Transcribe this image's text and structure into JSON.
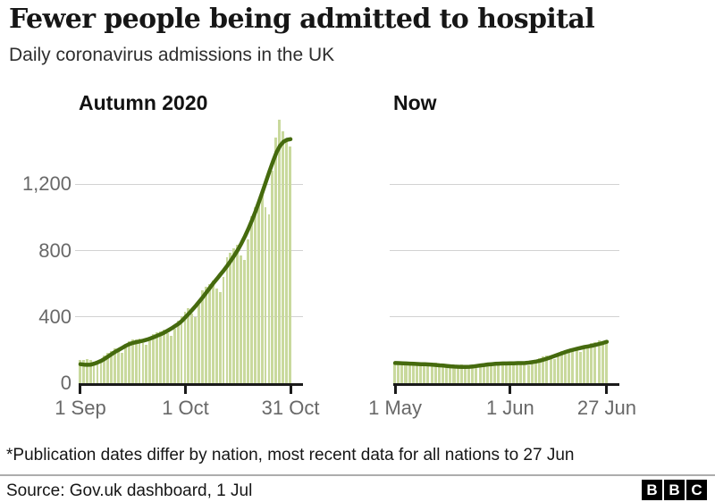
{
  "header": {
    "title": "Fewer people being admitted to hospital",
    "subtitle": "Daily coronavirus admissions in the UK"
  },
  "footnote": "*Publication dates differ by nation, most recent data for all nations to 27 Jun",
  "source": "Source: Gov.uk dashboard, 1 Jul",
  "brand": {
    "letters": [
      "B",
      "B",
      "C"
    ]
  },
  "colors": {
    "bar": "#c9d99d",
    "line": "#456a0e",
    "grid": "#d2d2d2",
    "axis": "#1a1a1a",
    "tick_label": "#686868",
    "text": "#161616",
    "separator": "#adadad"
  },
  "chart_data": [
    {
      "type": "bar",
      "panel_label": "Autumn 2020",
      "x_range": "1 Sep - 31 Oct 2020",
      "ylim": [
        0,
        1600
      ],
      "y_gridlines": [
        400,
        800,
        1200
      ],
      "y_axis": [
        {
          "value": 0,
          "label": "0"
        },
        {
          "value": 400,
          "label": "400"
        },
        {
          "value": 800,
          "label": "800"
        },
        {
          "value": 1200,
          "label": "1,200"
        }
      ],
      "x_ticks": [
        {
          "day": 0,
          "label": "1 Sep"
        },
        {
          "day": 30,
          "label": "1 Oct"
        },
        {
          "day": 60,
          "label": "31 Oct"
        }
      ],
      "bars": [
        140,
        138,
        145,
        142,
        128,
        118,
        130,
        168,
        184,
        196,
        208,
        196,
        182,
        216,
        252,
        262,
        264,
        268,
        244,
        230,
        262,
        296,
        306,
        312,
        322,
        300,
        286,
        330,
        378,
        402,
        430,
        452,
        420,
        398,
        472,
        560,
        582,
        600,
        618,
        570,
        548,
        640,
        760,
        788,
        812,
        836,
        770,
        742,
        870,
        1010,
        1060,
        1100,
        1150,
        1060,
        1020,
        1280,
        1480,
        1590,
        1520,
        1470,
        1430
      ],
      "avg_line": [
        115,
        112,
        111,
        112,
        118,
        126,
        136,
        148,
        162,
        176,
        190,
        202,
        214,
        226,
        236,
        243,
        248,
        252,
        257,
        263,
        270,
        278,
        287,
        296,
        306,
        318,
        330,
        344,
        358,
        376,
        398,
        420,
        444,
        468,
        494,
        520,
        548,
        576,
        604,
        630,
        656,
        682,
        710,
        740,
        772,
        806,
        844,
        886,
        932,
        982,
        1036,
        1094,
        1154,
        1216,
        1278,
        1338,
        1392,
        1432,
        1456,
        1468,
        1472
      ]
    },
    {
      "type": "bar",
      "panel_label": "Now",
      "x_range": "1 May - 27 Jun 2021",
      "ylim": [
        0,
        1600
      ],
      "y_gridlines": [
        400,
        800,
        1200
      ],
      "y_axis": [],
      "x_ticks": [
        {
          "day": 0,
          "label": "1 May"
        },
        {
          "day": 31,
          "label": "1 Jun"
        },
        {
          "day": 57,
          "label": "27 Jun"
        }
      ],
      "bars": [
        126,
        112,
        108,
        124,
        128,
        126,
        124,
        116,
        104,
        102,
        118,
        122,
        118,
        114,
        108,
        96,
        94,
        108,
        112,
        110,
        108,
        102,
        92,
        96,
        116,
        122,
        124,
        122,
        116,
        106,
        110,
        126,
        130,
        128,
        126,
        118,
        110,
        120,
        142,
        152,
        160,
        166,
        154,
        146,
        164,
        192,
        200,
        206,
        212,
        198,
        190,
        208,
        232,
        242,
        248,
        258,
        246,
        252
      ],
      "avg_line": [
        122,
        121,
        120,
        119,
        118,
        117,
        116,
        115,
        114,
        113,
        112,
        110,
        108,
        106,
        104,
        102,
        100,
        99,
        98,
        98,
        99,
        101,
        104,
        107,
        110,
        113,
        115,
        117,
        118,
        119,
        119,
        120,
        120,
        121,
        121,
        122,
        124,
        127,
        131,
        136,
        142,
        149,
        157,
        165,
        173,
        181,
        189,
        196,
        202,
        208,
        213,
        218,
        222,
        226,
        231,
        237,
        243,
        250
      ]
    }
  ]
}
